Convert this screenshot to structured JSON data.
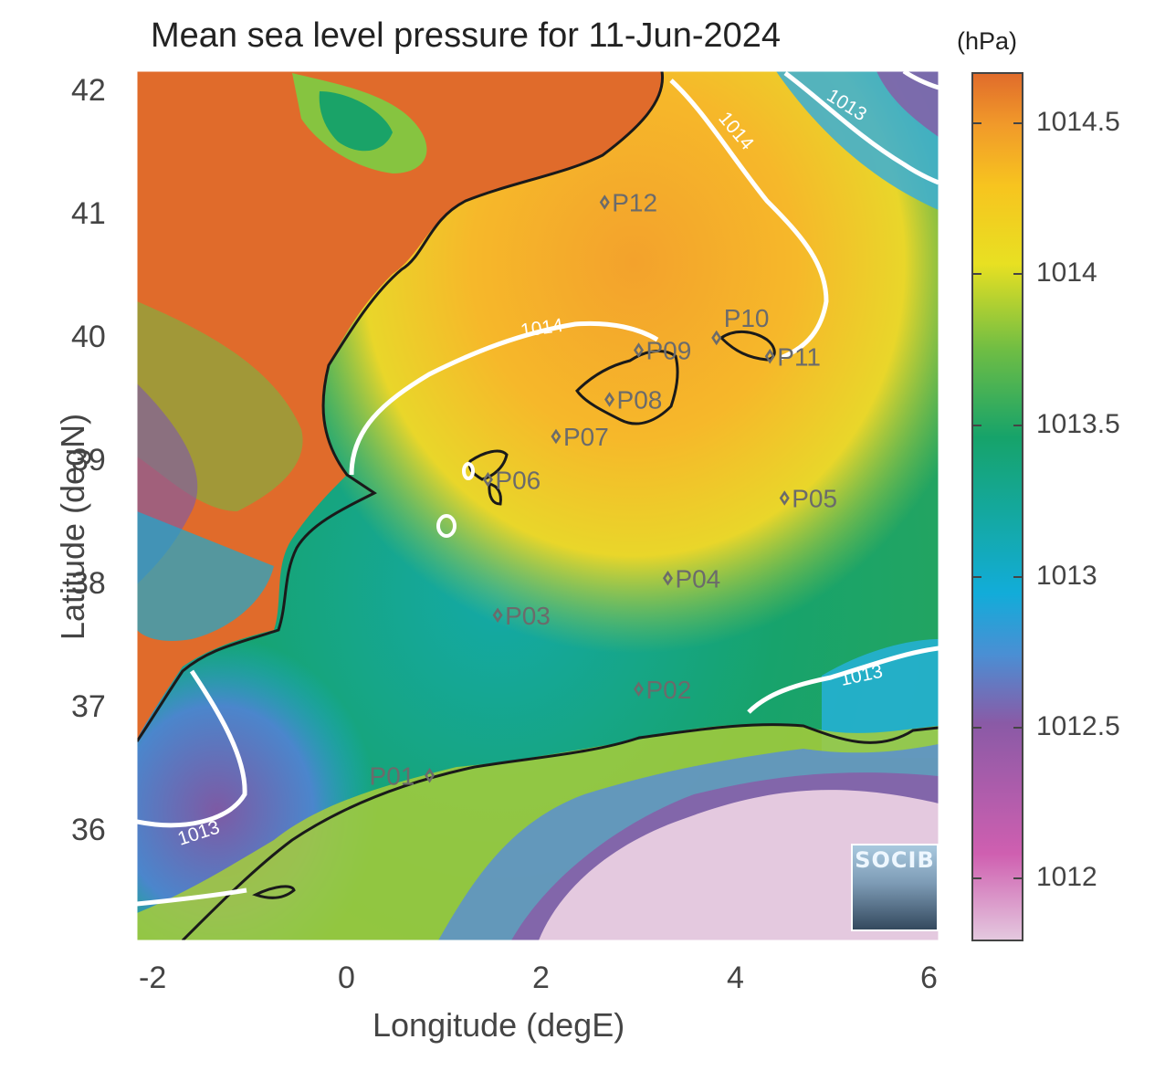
{
  "map": {
    "title": "Mean sea level pressure for 11-Jun-2024",
    "xlabel": "Longitude (degE)",
    "ylabel": "Latitude (degN)",
    "xticks": [
      "-2",
      "0",
      "2",
      "4",
      "6"
    ],
    "yticks": [
      "42",
      "41",
      "40",
      "39",
      "38",
      "37",
      "36"
    ],
    "colorbar": {
      "unit": "(hPa)",
      "ticks": [
        "1014.5",
        "1014",
        "1013.5",
        "1013",
        "1012.5",
        "1012"
      ],
      "colors": [
        "#e1c3dc",
        "#cf5fb0",
        "#8a5aa6",
        "#5a8cd2",
        "#12acd9",
        "#14a9a7",
        "#16a36a",
        "#6ebd44",
        "#d6e02b",
        "#f7d61b",
        "#f9a62a",
        "#e06b2b"
      ]
    },
    "contour_labels": [
      "1014",
      "1014",
      "1013",
      "1013",
      "1013"
    ],
    "points": [
      {
        "label": "P01",
        "lon": 0.85,
        "lat": 36.45
      },
      {
        "label": "P02",
        "lon": 3.0,
        "lat": 37.15
      },
      {
        "label": "P03",
        "lon": 1.55,
        "lat": 37.75
      },
      {
        "label": "P04",
        "lon": 3.3,
        "lat": 38.05
      },
      {
        "label": "P05",
        "lon": 4.5,
        "lat": 38.7
      },
      {
        "label": "P06",
        "lon": 1.45,
        "lat": 38.85
      },
      {
        "label": "P07",
        "lon": 2.15,
        "lat": 39.2
      },
      {
        "label": "P08",
        "lon": 2.7,
        "lat": 39.5
      },
      {
        "label": "P09",
        "lon": 3.0,
        "lat": 39.9
      },
      {
        "label": "P10",
        "lon": 3.8,
        "lat": 40.0
      },
      {
        "label": "P11",
        "lon": 4.35,
        "lat": 39.85
      },
      {
        "label": "P12",
        "lon": 2.65,
        "lat": 41.1
      }
    ],
    "logo_text": "SOCIB"
  }
}
